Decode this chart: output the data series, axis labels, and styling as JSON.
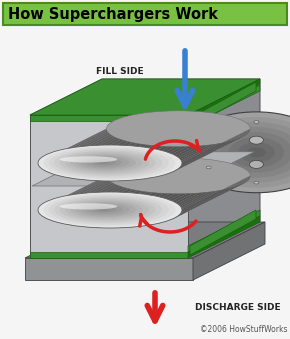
{
  "title": "How Superchargers Work",
  "title_bg": "#78c142",
  "title_border": "#4a8a20",
  "title_color": "#000000",
  "title_fontsize": 10.5,
  "fill_side_label": "FILL SIDE",
  "discharge_side_label": "DISCHARGE SIDE",
  "copyright": "©2006 HowStuffWorks",
  "label_fontsize": 6.5,
  "copyright_fontsize": 5.5,
  "bg_color": "#f5f5f5",
  "blue_arrow_color": "#3a80d0",
  "red_arrow_color": "#dd2020",
  "red_arrow_light": "#ee6060",
  "green_seal_color": "#3a9030",
  "housing_body": "#c0c2c5",
  "housing_dark": "#7a7c80",
  "housing_side": "#9a9c9f",
  "rotor_highlight": "#e8e8e8",
  "rotor_mid": "#c0c0c0",
  "rotor_shadow": "#909090",
  "rotor_dark": "#686868"
}
